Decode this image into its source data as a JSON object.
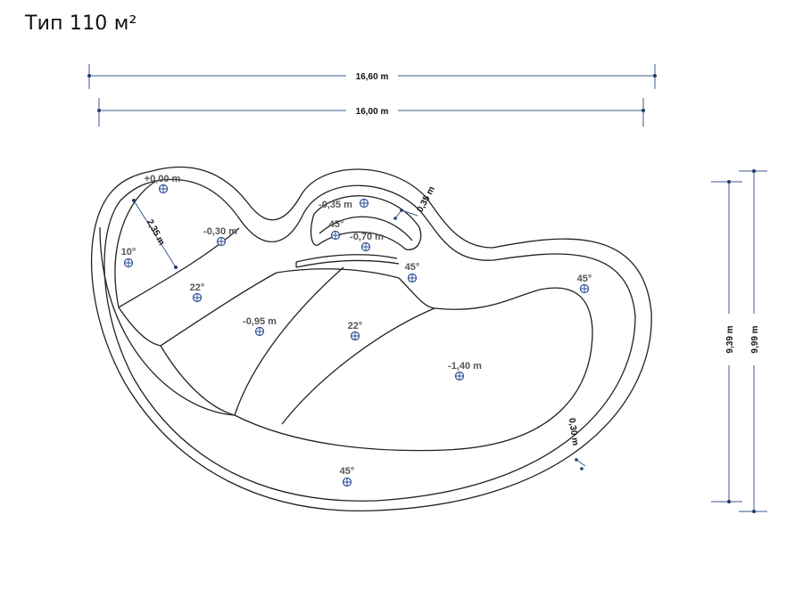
{
  "title": "Тип 110 м²",
  "dimensions": {
    "overall_length": "16,60 m",
    "inner_length": "16,00 m",
    "inner_width": "9,39 m",
    "overall_width": "9,99 m",
    "ladder_width": "2,35 m",
    "step_width": "0,35 m",
    "edge_width": "0,30 m"
  },
  "depth_labels": {
    "p000": "+0,00 m",
    "p030": "-0,30 m",
    "p035": "-0,35 m",
    "p070": "-0,70 m",
    "p095": "-0,95 m",
    "p140": "-1,40 m"
  },
  "angle_labels": {
    "a10": "10°",
    "a22_left": "22°",
    "a22_mid": "22°",
    "a45_step": "45°",
    "a45_center": "45°",
    "a45_right": "45°",
    "a45_bottom": "45°"
  }
}
